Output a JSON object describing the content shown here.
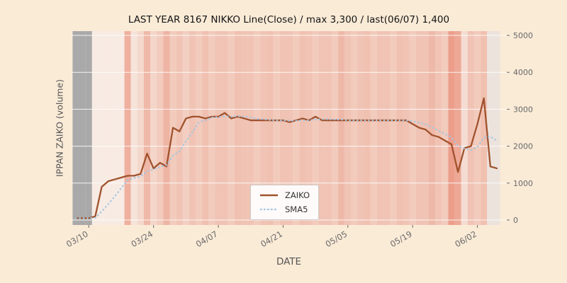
{
  "colors": {
    "background": "#faebd7",
    "grid": "#ffffff",
    "tick": "#696969",
    "axis_label": "#555555",
    "zaiko_line": "#a0522d",
    "sma5_line": "#a3c6e2"
  },
  "chart_data": {
    "type": "line",
    "title": "LAST YEAR 8167 NIKKO Line(Close) / max 3,300 / last(06/07) 1,400",
    "xlabel": "DATE",
    "ylabel": "IPPAN ZAIKO (volume)",
    "ylim": [
      0,
      5000
    ],
    "yticks": [
      0,
      1000,
      2000,
      3000,
      4000,
      5000
    ],
    "xtick_indices": [
      2,
      12,
      22,
      32,
      42,
      52,
      62
    ],
    "xtick_labels": [
      "03/10",
      "03/24",
      "04/07",
      "04/21",
      "05/05",
      "05/19",
      "06/02"
    ],
    "grid": "horizontal",
    "legend_position": "lower center",
    "legend": [
      {
        "label": "ZAIKO",
        "color": "#a0522d",
        "style": "solid"
      },
      {
        "label": "SMA5",
        "color": "#a3c6e2",
        "style": "dotted"
      }
    ],
    "series": [
      {
        "name": "ZAIKO",
        "values": [
          50,
          50,
          50,
          100,
          900,
          1050,
          1100,
          1150,
          1200,
          1200,
          1250,
          1800,
          1400,
          1550,
          1450,
          2500,
          2400,
          2750,
          2800,
          2800,
          2750,
          2800,
          2800,
          2900,
          2750,
          2800,
          2750,
          2700,
          2700,
          2700,
          2700,
          2700,
          2700,
          2650,
          2700,
          2750,
          2700,
          2800,
          2700,
          2700,
          2700,
          2700,
          2700,
          2700,
          2700,
          2700,
          2700,
          2700,
          2700,
          2700,
          2700,
          2700,
          2600,
          2500,
          2450,
          2300,
          2250,
          2150,
          2050,
          1300,
          1950,
          2000,
          2600,
          3300,
          1450,
          1400
        ]
      },
      {
        "name": "SMA5",
        "derived_from": "ZAIKO",
        "window": 5
      }
    ],
    "band_colors": [
      "#a9a9a9",
      "#a9a9a9",
      "#a9a9a9",
      "#f7ebe3",
      "#f7ebe3",
      "#f7ebe3",
      "#f7ebe3",
      "#f7ebe3",
      "#efb0a0",
      "#f6e3da",
      "#f4d8cc",
      "#efb8a8",
      "#f4d5c9",
      "#f2cbbd",
      "#eeb4a4",
      "#f2cbbd",
      "#f0c3b4",
      "#f2cfc2",
      "#f0c3b4",
      "#f2cbbd",
      "#f0c0b0",
      "#f2cbbd",
      "#f0c3b4",
      "#f0c3b4",
      "#f2cbbd",
      "#f0c0b0",
      "#f0c3b4",
      "#f0c3b4",
      "#f2cbbd",
      "#f0c3b4",
      "#f0c0b0",
      "#f2cbbd",
      "#f0c3b4",
      "#f0c3b4",
      "#f2cbbd",
      "#f0c0b0",
      "#f0c3b4",
      "#f2cbbd",
      "#f0c3b4",
      "#f0c3b4",
      "#f2cbbd",
      "#eeb8a8",
      "#f0c3b4",
      "#f2cbbd",
      "#f0c3b4",
      "#f0c0b0",
      "#f2cbbd",
      "#f0c3b4",
      "#f0c3b4",
      "#f2cbbd",
      "#f0c0b0",
      "#f0c3b4",
      "#f2cbbd",
      "#f0c3b4",
      "#f0c3b4",
      "#eeb8a8",
      "#f0c3b4",
      "#f2cbbd",
      "#ec9e8b",
      "#eda896",
      "#f5dcd2",
      "#f0c3b4",
      "#f2cbbd",
      "#f0c0b0",
      "#ece3dd",
      "#ece3dd"
    ]
  }
}
